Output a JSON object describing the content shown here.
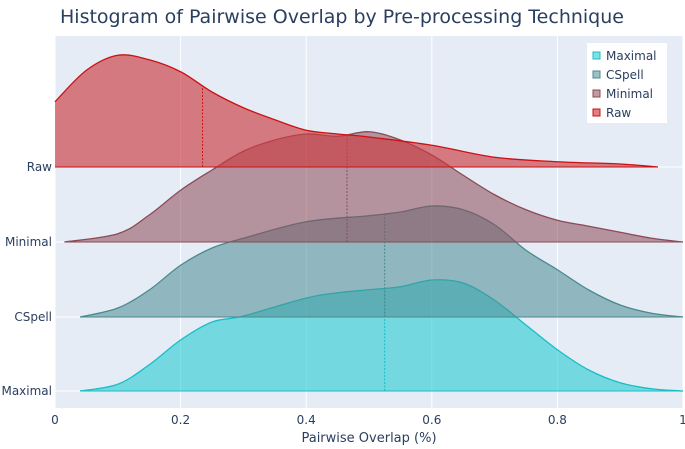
{
  "chart_data": {
    "type": "violin",
    "title": "Histogram of Pairwise Overlap by Pre-processing Technique",
    "xlabel": "Pairwise Overlap (%)",
    "ylabel": "",
    "xlim": [
      0,
      1
    ],
    "xticks": [
      "0",
      "0.2",
      "0.4",
      "0.6",
      "0.8",
      "1"
    ],
    "xtick_values": [
      0,
      0.2,
      0.4,
      0.6,
      0.8,
      1
    ],
    "categories": [
      "Maximal",
      "CSpell",
      "Minimal",
      "Raw"
    ],
    "grid": true,
    "legend_position": "top-right",
    "legend": [
      "Maximal",
      "CSpell",
      "Minimal",
      "Raw"
    ],
    "series": [
      {
        "name": "Maximal",
        "line_color": "#17bfc4",
        "fill_color": "rgba(23,200,205,0.55)",
        "median": 0.525,
        "density": [
          [
            0.04,
            0
          ],
          [
            0.1,
            0.09
          ],
          [
            0.15,
            0.35
          ],
          [
            0.2,
            0.68
          ],
          [
            0.25,
            0.92
          ],
          [
            0.3,
            1.0
          ],
          [
            0.4,
            1.24
          ],
          [
            0.45,
            1.31
          ],
          [
            0.5,
            1.35
          ],
          [
            0.55,
            1.39
          ],
          [
            0.6,
            1.48
          ],
          [
            0.65,
            1.44
          ],
          [
            0.7,
            1.21
          ],
          [
            0.75,
            0.88
          ],
          [
            0.8,
            0.55
          ],
          [
            0.85,
            0.28
          ],
          [
            0.9,
            0.11
          ],
          [
            0.95,
            0.03
          ],
          [
            1,
            0
          ]
        ]
      },
      {
        "name": "CSpell",
        "line_color": "#4a8a8c",
        "fill_color": "rgba(74,140,145,0.55)",
        "median": 0.525,
        "density": [
          [
            0.04,
            0
          ],
          [
            0.1,
            0.12
          ],
          [
            0.15,
            0.36
          ],
          [
            0.2,
            0.69
          ],
          [
            0.25,
            0.92
          ],
          [
            0.3,
            1.05
          ],
          [
            0.4,
            1.27
          ],
          [
            0.5,
            1.35
          ],
          [
            0.55,
            1.4
          ],
          [
            0.6,
            1.48
          ],
          [
            0.65,
            1.43
          ],
          [
            0.7,
            1.23
          ],
          [
            0.75,
            0.89
          ],
          [
            0.8,
            0.63
          ],
          [
            0.85,
            0.36
          ],
          [
            0.9,
            0.16
          ],
          [
            0.95,
            0.05
          ],
          [
            1,
            0
          ]
        ]
      },
      {
        "name": "Minimal",
        "line_color": "#8c4a55",
        "fill_color": "rgba(140,74,85,0.55)",
        "median": 0.465,
        "density": [
          [
            0.015,
            0
          ],
          [
            0.1,
            0.11
          ],
          [
            0.15,
            0.36
          ],
          [
            0.2,
            0.69
          ],
          [
            0.25,
            0.96
          ],
          [
            0.3,
            1.21
          ],
          [
            0.35,
            1.36
          ],
          [
            0.4,
            1.44
          ],
          [
            0.45,
            1.41
          ],
          [
            0.5,
            1.47
          ],
          [
            0.55,
            1.36
          ],
          [
            0.6,
            1.16
          ],
          [
            0.65,
            0.89
          ],
          [
            0.7,
            0.63
          ],
          [
            0.75,
            0.43
          ],
          [
            0.8,
            0.29
          ],
          [
            0.85,
            0.21
          ],
          [
            0.9,
            0.13
          ],
          [
            0.95,
            0.05
          ],
          [
            1,
            0
          ]
        ]
      },
      {
        "name": "Raw",
        "line_color": "#cc1111",
        "fill_color": "rgba(205,60,65,0.65)",
        "median": 0.235,
        "density": [
          [
            0,
            0.87
          ],
          [
            0.05,
            1.29
          ],
          [
            0.1,
            1.49
          ],
          [
            0.15,
            1.43
          ],
          [
            0.2,
            1.27
          ],
          [
            0.25,
            1.0
          ],
          [
            0.3,
            0.79
          ],
          [
            0.35,
            0.63
          ],
          [
            0.4,
            0.49
          ],
          [
            0.45,
            0.44
          ],
          [
            0.5,
            0.4
          ],
          [
            0.6,
            0.29
          ],
          [
            0.7,
            0.13
          ],
          [
            0.8,
            0.07
          ],
          [
            0.9,
            0.04
          ],
          [
            0.96,
            0
          ]
        ]
      }
    ]
  }
}
